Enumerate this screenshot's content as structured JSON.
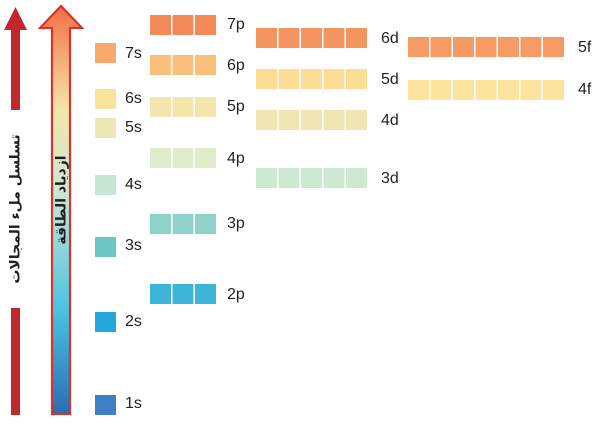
{
  "arrows": {
    "sequence_label": "تسلسل ملء المجالات",
    "energy_label": "ازدياد الطاقة"
  },
  "colors": {
    "sequence_arrow": "#c1272d",
    "energy_arrow_outline": "#d7352b",
    "energy_gradient_top": "#f36f45",
    "energy_gradient_mid": "#e6e4b0",
    "energy_gradient_lower": "#49c1e0",
    "energy_gradient_bottom": "#2b6db3"
  },
  "orbitals": [
    {
      "label": "1s",
      "boxes": 1,
      "color": "#3d7fc4"
    },
    {
      "label": "2s",
      "boxes": 1,
      "color": "#22a8dd"
    },
    {
      "label": "2p",
      "boxes": 3,
      "color": "#3db5d8"
    },
    {
      "label": "3s",
      "boxes": 1,
      "color": "#6cc6c4"
    },
    {
      "label": "3p",
      "boxes": 3,
      "color": "#8dd3cb"
    },
    {
      "label": "4s",
      "boxes": 1,
      "color": "#c6e6d3"
    },
    {
      "label": "3d",
      "boxes": 5,
      "color": "#cde9d1"
    },
    {
      "label": "4p",
      "boxes": 3,
      "color": "#e1edca"
    },
    {
      "label": "5s",
      "boxes": 1,
      "color": "#ede8b5"
    },
    {
      "label": "4d",
      "boxes": 5,
      "color": "#efe6b2"
    },
    {
      "label": "5p",
      "boxes": 3,
      "color": "#f3e6ad"
    },
    {
      "label": "6s",
      "boxes": 1,
      "color": "#fae19c"
    },
    {
      "label": "4f",
      "boxes": 7,
      "color": "#fce49d"
    },
    {
      "label": "5d",
      "boxes": 5,
      "color": "#fcdc94"
    },
    {
      "label": "6p",
      "boxes": 3,
      "color": "#fbbf7c"
    },
    {
      "label": "7s",
      "boxes": 1,
      "color": "#f9a870"
    },
    {
      "label": "5f",
      "boxes": 7,
      "color": "#f69a64"
    },
    {
      "label": "6d",
      "boxes": 5,
      "color": "#f4945e"
    },
    {
      "label": "7p",
      "boxes": 3,
      "color": "#f48a58"
    }
  ]
}
